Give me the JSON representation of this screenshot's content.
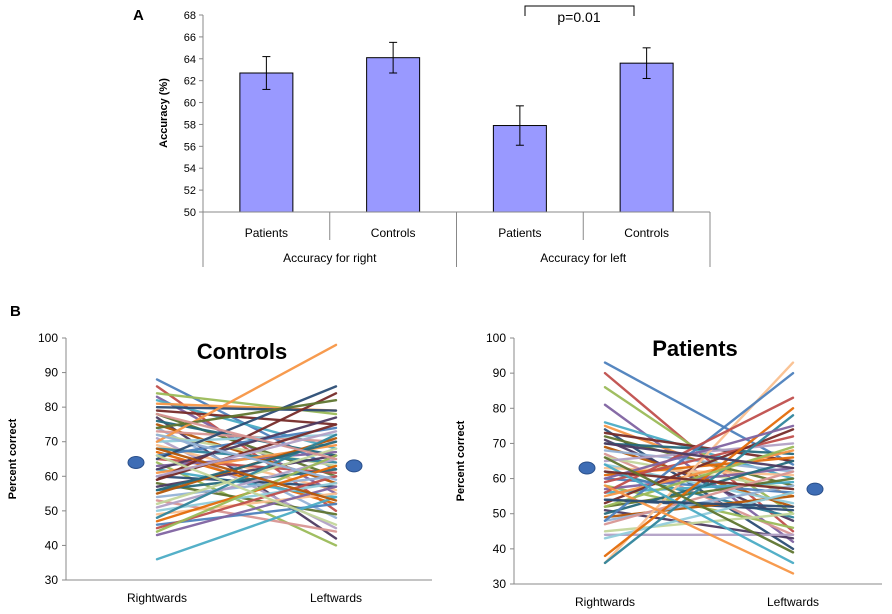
{
  "chart_data": [
    {
      "panel_label": "A",
      "type": "bar",
      "ylabel": "Accuracy (%)",
      "ylim": [
        50,
        68
      ],
      "ytick_step": 2,
      "bar_color": "#9999ff",
      "categories": [
        "Patients",
        "Controls",
        "Patients",
        "Controls"
      ],
      "groups": [
        "Accuracy for right",
        "Accuracy for left"
      ],
      "values": [
        62.7,
        64.1,
        57.9,
        63.6
      ],
      "errors": [
        1.5,
        1.4,
        1.8,
        1.4
      ],
      "annotation": "p=0.01"
    },
    {
      "panel_label": "B",
      "type": "line",
      "title": "Controls",
      "ylabel": "Percent correct",
      "ylim": [
        30,
        100
      ],
      "ytick_step": 10,
      "x": [
        "Rightwards",
        "Leftwards"
      ],
      "mean": [
        64,
        63
      ],
      "mean_color": "#3e6db5",
      "series_colors": [
        "#4e81bd",
        "#c0504d",
        "#9bbb59",
        "#8064a2",
        "#4bacc6",
        "#f79646",
        "#2c4d75",
        "#772c2a",
        "#5f7530",
        "#4d3b62",
        "#276a7c",
        "#b65708",
        "#95b3d7",
        "#d99694",
        "#c3d69b",
        "#b3a2c7",
        "#92cddc",
        "#fac090",
        "#31859c",
        "#e46c0a"
      ],
      "pairs": [
        [
          88,
          62
        ],
        [
          86,
          50
        ],
        [
          84,
          78
        ],
        [
          83,
          55
        ],
        [
          82,
          68
        ],
        [
          81,
          79
        ],
        [
          80,
          79
        ],
        [
          79,
          75
        ],
        [
          78,
          60
        ],
        [
          77,
          42
        ],
        [
          76,
          66
        ],
        [
          75,
          58
        ],
        [
          74,
          48
        ],
        [
          73,
          70
        ],
        [
          72,
          63
        ],
        [
          71,
          45
        ],
        [
          70,
          72
        ],
        [
          69,
          56
        ],
        [
          68,
          64
        ],
        [
          67,
          52
        ],
        [
          66,
          74
        ],
        [
          65,
          61
        ],
        [
          64,
          40
        ],
        [
          63,
          67
        ],
        [
          62,
          54
        ],
        [
          61,
          69
        ],
        [
          60,
          57
        ],
        [
          59,
          75
        ],
        [
          58,
          49
        ],
        [
          57,
          66
        ],
        [
          56,
          62
        ],
        [
          55,
          71
        ],
        [
          54,
          60
        ],
        [
          53,
          44
        ],
        [
          52,
          68
        ],
        [
          51,
          65
        ],
        [
          50,
          58
        ],
        [
          49,
          55
        ],
        [
          48,
          72
        ],
        [
          47,
          63
        ],
        [
          46,
          52
        ],
        [
          45,
          60
        ],
        [
          44,
          66
        ],
        [
          43,
          57
        ],
        [
          36,
          54
        ],
        [
          70,
          98
        ],
        [
          65,
          86
        ],
        [
          59,
          84
        ],
        [
          74,
          82
        ],
        [
          62,
          77
        ],
        [
          56,
          70
        ],
        [
          68,
          53
        ],
        [
          72,
          59
        ],
        [
          78,
          65
        ],
        [
          66,
          46
        ],
        [
          60,
          73
        ]
      ]
    },
    {
      "type": "line",
      "title": "Patients",
      "ylabel": "Percent correct",
      "ylim": [
        30,
        100
      ],
      "ytick_step": 10,
      "x": [
        "Rightwards",
        "Leftwards"
      ],
      "mean": [
        63,
        57
      ],
      "mean_color": "#3e6db5",
      "series_colors": [
        "#4e81bd",
        "#c0504d",
        "#9bbb59",
        "#8064a2",
        "#4bacc6",
        "#f79646",
        "#2c4d75",
        "#772c2a",
        "#5f7530",
        "#4d3b62",
        "#276a7c",
        "#b65708",
        "#95b3d7",
        "#d99694",
        "#c3d69b",
        "#b3a2c7",
        "#92cddc",
        "#fac090",
        "#31859c",
        "#e46c0a"
      ],
      "pairs": [
        [
          93,
          64
        ],
        [
          90,
          45
        ],
        [
          86,
          50
        ],
        [
          81,
          42
        ],
        [
          76,
          60
        ],
        [
          75,
          55
        ],
        [
          74,
          40
        ],
        [
          73,
          65
        ],
        [
          72,
          58
        ],
        [
          71,
          48
        ],
        [
          70,
          67
        ],
        [
          69,
          52
        ],
        [
          68,
          62
        ],
        [
          67,
          44
        ],
        [
          66,
          57
        ],
        [
          65,
          70
        ],
        [
          64,
          53
        ],
        [
          63,
          61
        ],
        [
          62,
          49
        ],
        [
          61,
          66
        ],
        [
          60,
          56
        ],
        [
          59,
          72
        ],
        [
          58,
          46
        ],
        [
          57,
          63
        ],
        [
          56,
          59
        ],
        [
          55,
          68
        ],
        [
          54,
          51
        ],
        [
          53,
          74
        ],
        [
          52,
          60
        ],
        [
          51,
          43
        ],
        [
          50,
          65
        ],
        [
          49,
          55
        ],
        [
          48,
          58
        ],
        [
          47,
          62
        ],
        [
          45,
          50
        ],
        [
          44,
          44
        ],
        [
          43,
          56
        ],
        [
          36,
          93
        ],
        [
          36,
          78
        ],
        [
          38,
          80
        ],
        [
          48,
          90
        ],
        [
          56,
          83
        ],
        [
          52,
          69
        ],
        [
          60,
          75
        ],
        [
          64,
          36
        ],
        [
          58,
          33
        ],
        [
          54,
          52
        ],
        [
          62,
          57
        ],
        [
          66,
          39
        ],
        [
          70,
          63
        ]
      ]
    }
  ]
}
